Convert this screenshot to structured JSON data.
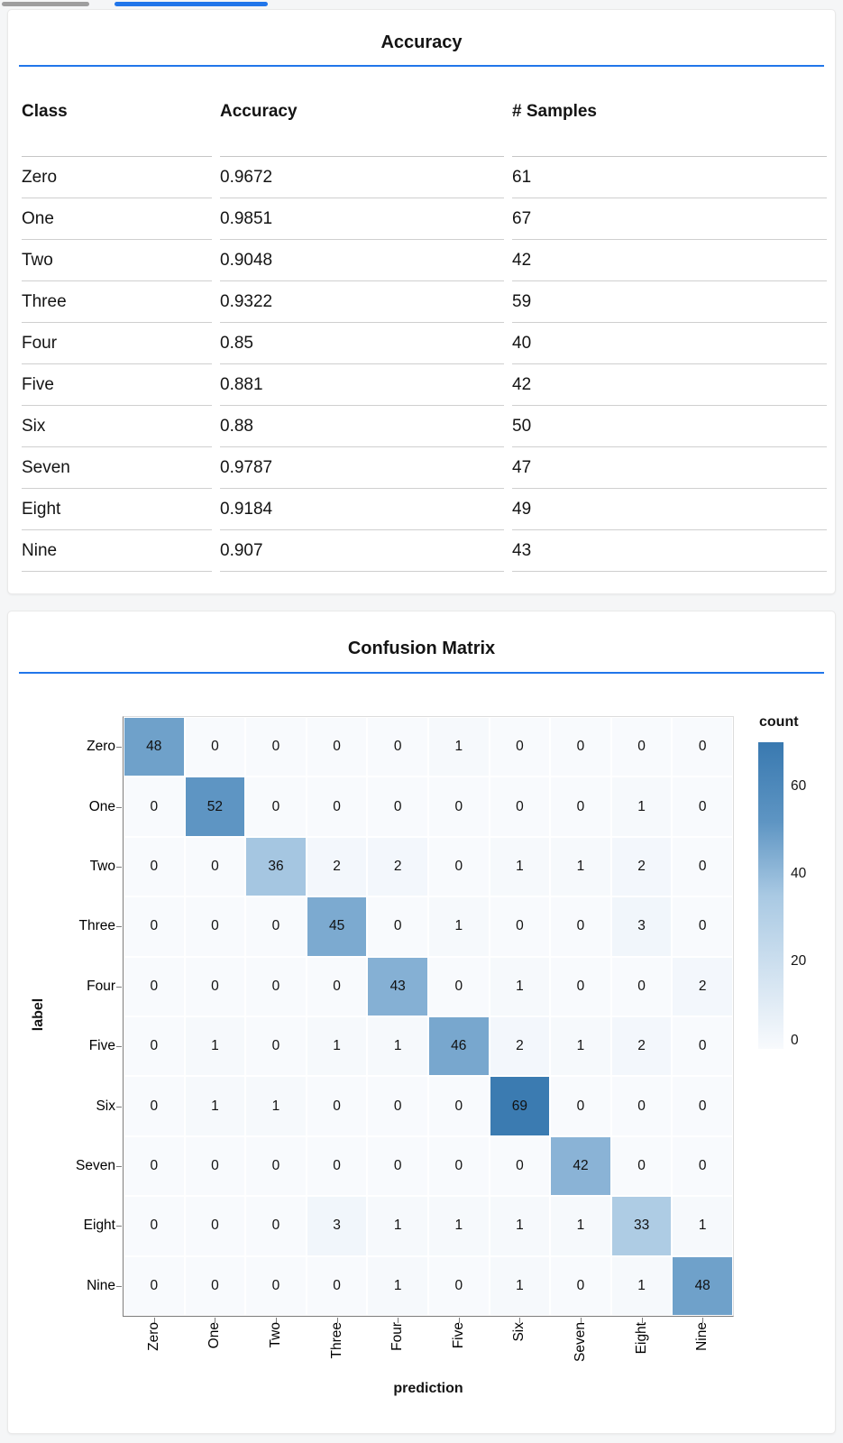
{
  "colors": {
    "accent_blue": "#2176ea",
    "tab_inactive_gray": "#9e9e9e",
    "axis_line": "#7b7b7b",
    "plot_border": "#dddddd",
    "table_border": "#cfcfcf"
  },
  "chart_data": [
    {
      "type": "table",
      "title": "Accuracy",
      "columns": [
        "Class",
        "Accuracy",
        "# Samples"
      ],
      "rows": [
        [
          "Zero",
          "0.9672",
          "61"
        ],
        [
          "One",
          "0.9851",
          "67"
        ],
        [
          "Two",
          "0.9048",
          "42"
        ],
        [
          "Three",
          "0.9322",
          "59"
        ],
        [
          "Four",
          "0.85",
          "40"
        ],
        [
          "Five",
          "0.881",
          "42"
        ],
        [
          "Six",
          "0.88",
          "50"
        ],
        [
          "Seven",
          "0.9787",
          "47"
        ],
        [
          "Eight",
          "0.9184",
          "49"
        ],
        [
          "Nine",
          "0.907",
          "43"
        ]
      ]
    },
    {
      "type": "heatmap",
      "title": "Confusion Matrix",
      "xlabel": "prediction",
      "ylabel": "label",
      "legend_title": "count",
      "x_categories": [
        "Zero",
        "One",
        "Two",
        "Three",
        "Four",
        "Five",
        "Six",
        "Seven",
        "Eight",
        "Nine"
      ],
      "y_categories": [
        "Zero",
        "One",
        "Two",
        "Three",
        "Four",
        "Five",
        "Six",
        "Seven",
        "Eight",
        "Nine"
      ],
      "matrix": [
        [
          48,
          0,
          0,
          0,
          0,
          1,
          0,
          0,
          0,
          0
        ],
        [
          0,
          52,
          0,
          0,
          0,
          0,
          0,
          0,
          1,
          0
        ],
        [
          0,
          0,
          36,
          2,
          2,
          0,
          1,
          1,
          2,
          0
        ],
        [
          0,
          0,
          0,
          45,
          0,
          1,
          0,
          0,
          3,
          0
        ],
        [
          0,
          0,
          0,
          0,
          43,
          0,
          1,
          0,
          0,
          2
        ],
        [
          0,
          1,
          0,
          1,
          1,
          46,
          2,
          1,
          2,
          0
        ],
        [
          0,
          1,
          1,
          0,
          0,
          0,
          69,
          0,
          0,
          0
        ],
        [
          0,
          0,
          0,
          0,
          0,
          0,
          0,
          42,
          0,
          0
        ],
        [
          0,
          0,
          0,
          3,
          1,
          1,
          1,
          1,
          33,
          1
        ],
        [
          0,
          0,
          0,
          0,
          1,
          0,
          1,
          0,
          1,
          48
        ]
      ],
      "color_domain": [
        0,
        70
      ],
      "legend_ticks": [
        60,
        40,
        20,
        0
      ],
      "color_stops": [
        [
          0.0,
          "#f8fafd"
        ],
        [
          0.5,
          "#a9c9e3"
        ],
        [
          0.74,
          "#5e95c3"
        ],
        [
          1.0,
          "#3979b0"
        ]
      ],
      "legend_position": "right",
      "grid": false
    }
  ]
}
